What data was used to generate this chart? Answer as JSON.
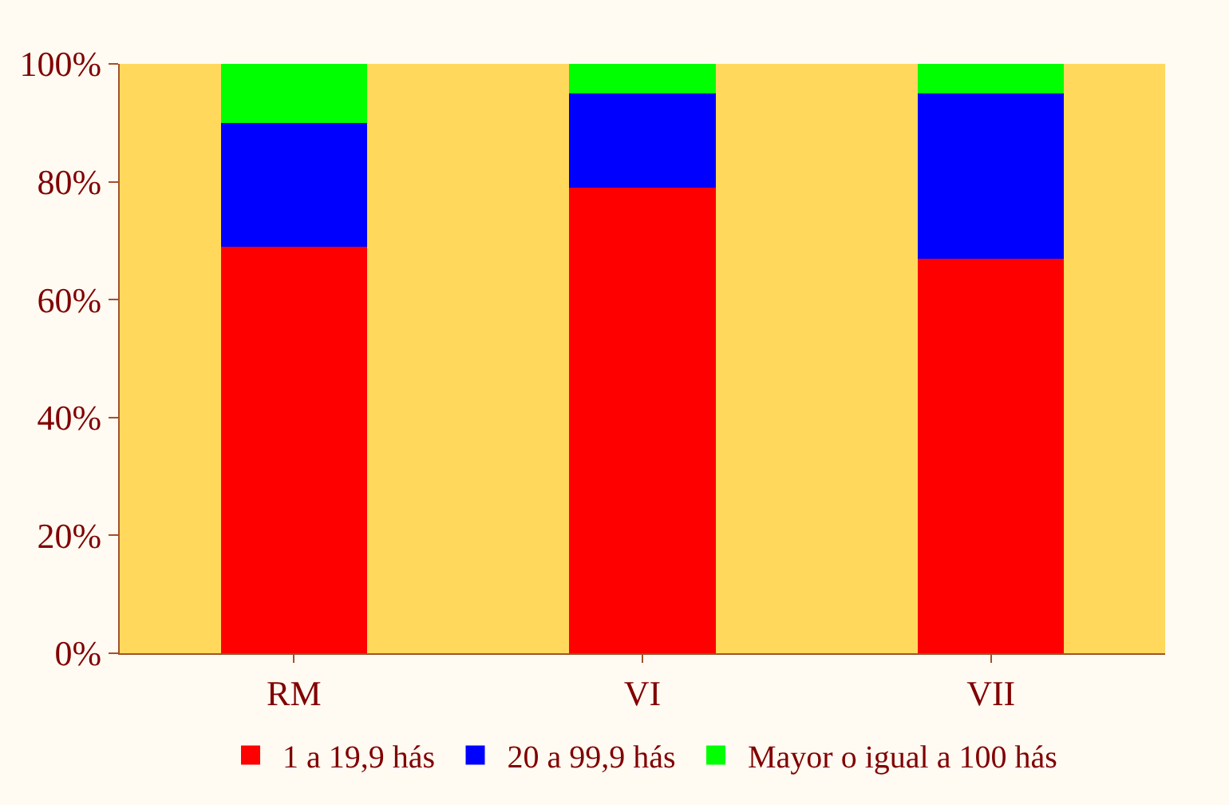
{
  "chart_data": {
    "type": "bar",
    "stacked": true,
    "categories": [
      "RM",
      "VI",
      "VII"
    ],
    "series": [
      {
        "name": "1 a 19,9 hás",
        "color": "#ff0000",
        "values": [
          69,
          79,
          67
        ]
      },
      {
        "name": "20 a 99,9 hás",
        "color": "#0000ff",
        "values": [
          21,
          16,
          28
        ]
      },
      {
        "name": "Mayor o igual a 100 hás",
        "color": "#00ff00",
        "values": [
          10,
          5,
          5
        ]
      }
    ],
    "ylim": [
      0,
      100
    ],
    "yticks": [
      {
        "value": 0,
        "label": "0%"
      },
      {
        "value": 20,
        "label": "20%"
      },
      {
        "value": 40,
        "label": "40%"
      },
      {
        "value": 60,
        "label": "60%"
      },
      {
        "value": 80,
        "label": "80%"
      },
      {
        "value": 100,
        "label": "100%"
      }
    ],
    "grid": false,
    "legend": "bottom"
  }
}
